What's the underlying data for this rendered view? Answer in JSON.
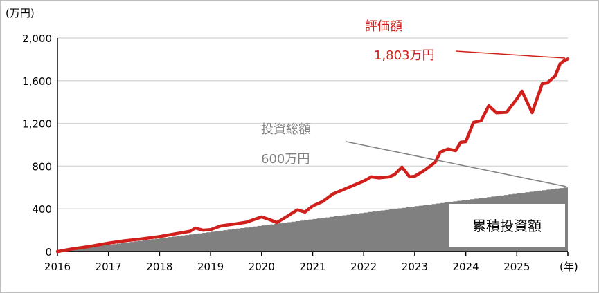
{
  "chart_data": {
    "type": "line",
    "y_unit_label": "(万円)",
    "x_unit_label": "(年)",
    "xlim": [
      2016,
      2026
    ],
    "ylim": [
      0,
      2000
    ],
    "y_ticks": [
      "0",
      "400",
      "800",
      "1,200",
      "1,600",
      "2,000"
    ],
    "y_tick_values": [
      0,
      400,
      800,
      1200,
      1600,
      2000
    ],
    "x_ticks": [
      "2016",
      "2017",
      "2018",
      "2019",
      "2020",
      "2021",
      "2022",
      "2023",
      "2024",
      "2025"
    ],
    "grid": "horizontal",
    "series": [
      {
        "name": "評価額",
        "color": "#d0201c",
        "end_label": "1,803万円",
        "x": [
          2016.0,
          2016.3,
          2016.6,
          2017.0,
          2017.3,
          2017.6,
          2018.0,
          2018.3,
          2018.6,
          2018.7,
          2018.85,
          2019.0,
          2019.2,
          2019.5,
          2019.7,
          2020.0,
          2020.15,
          2020.3,
          2020.5,
          2020.7,
          2020.85,
          2021.0,
          2021.2,
          2021.4,
          2021.6,
          2021.8,
          2022.0,
          2022.15,
          2022.3,
          2022.5,
          2022.6,
          2022.75,
          2022.9,
          2023.0,
          2023.2,
          2023.4,
          2023.5,
          2023.65,
          2023.8,
          2023.9,
          2024.0,
          2024.15,
          2024.3,
          2024.45,
          2024.6,
          2024.8,
          2025.0,
          2025.1,
          2025.3,
          2025.5,
          2025.6,
          2025.75,
          2025.85,
          2025.95,
          2026.0
        ],
        "y": [
          0,
          25,
          45,
          78,
          100,
          115,
          140,
          165,
          190,
          220,
          200,
          205,
          240,
          260,
          275,
          324,
          300,
          272,
          330,
          390,
          370,
          427,
          470,
          540,
          580,
          620,
          660,
          700,
          690,
          700,
          720,
          790,
          700,
          705,
          764,
          835,
          932,
          960,
          945,
          1023,
          1029,
          1210,
          1225,
          1366,
          1300,
          1305,
          1430,
          1502,
          1301,
          1573,
          1580,
          1644,
          1760,
          1795,
          1803
        ]
      },
      {
        "name": "累積投資額",
        "color": "#808080",
        "x": [
          2016,
          2026
        ],
        "y": [
          0,
          600
        ]
      }
    ],
    "annotations": [
      {
        "text": "評価額",
        "color": "#d0201c"
      },
      {
        "text": "1,803万円",
        "color": "#d0201c"
      },
      {
        "text": "投資総額",
        "color": "#808080"
      },
      {
        "text": "600万円",
        "color": "#808080"
      },
      {
        "text": "累積投資額",
        "color": "#000000"
      }
    ]
  }
}
